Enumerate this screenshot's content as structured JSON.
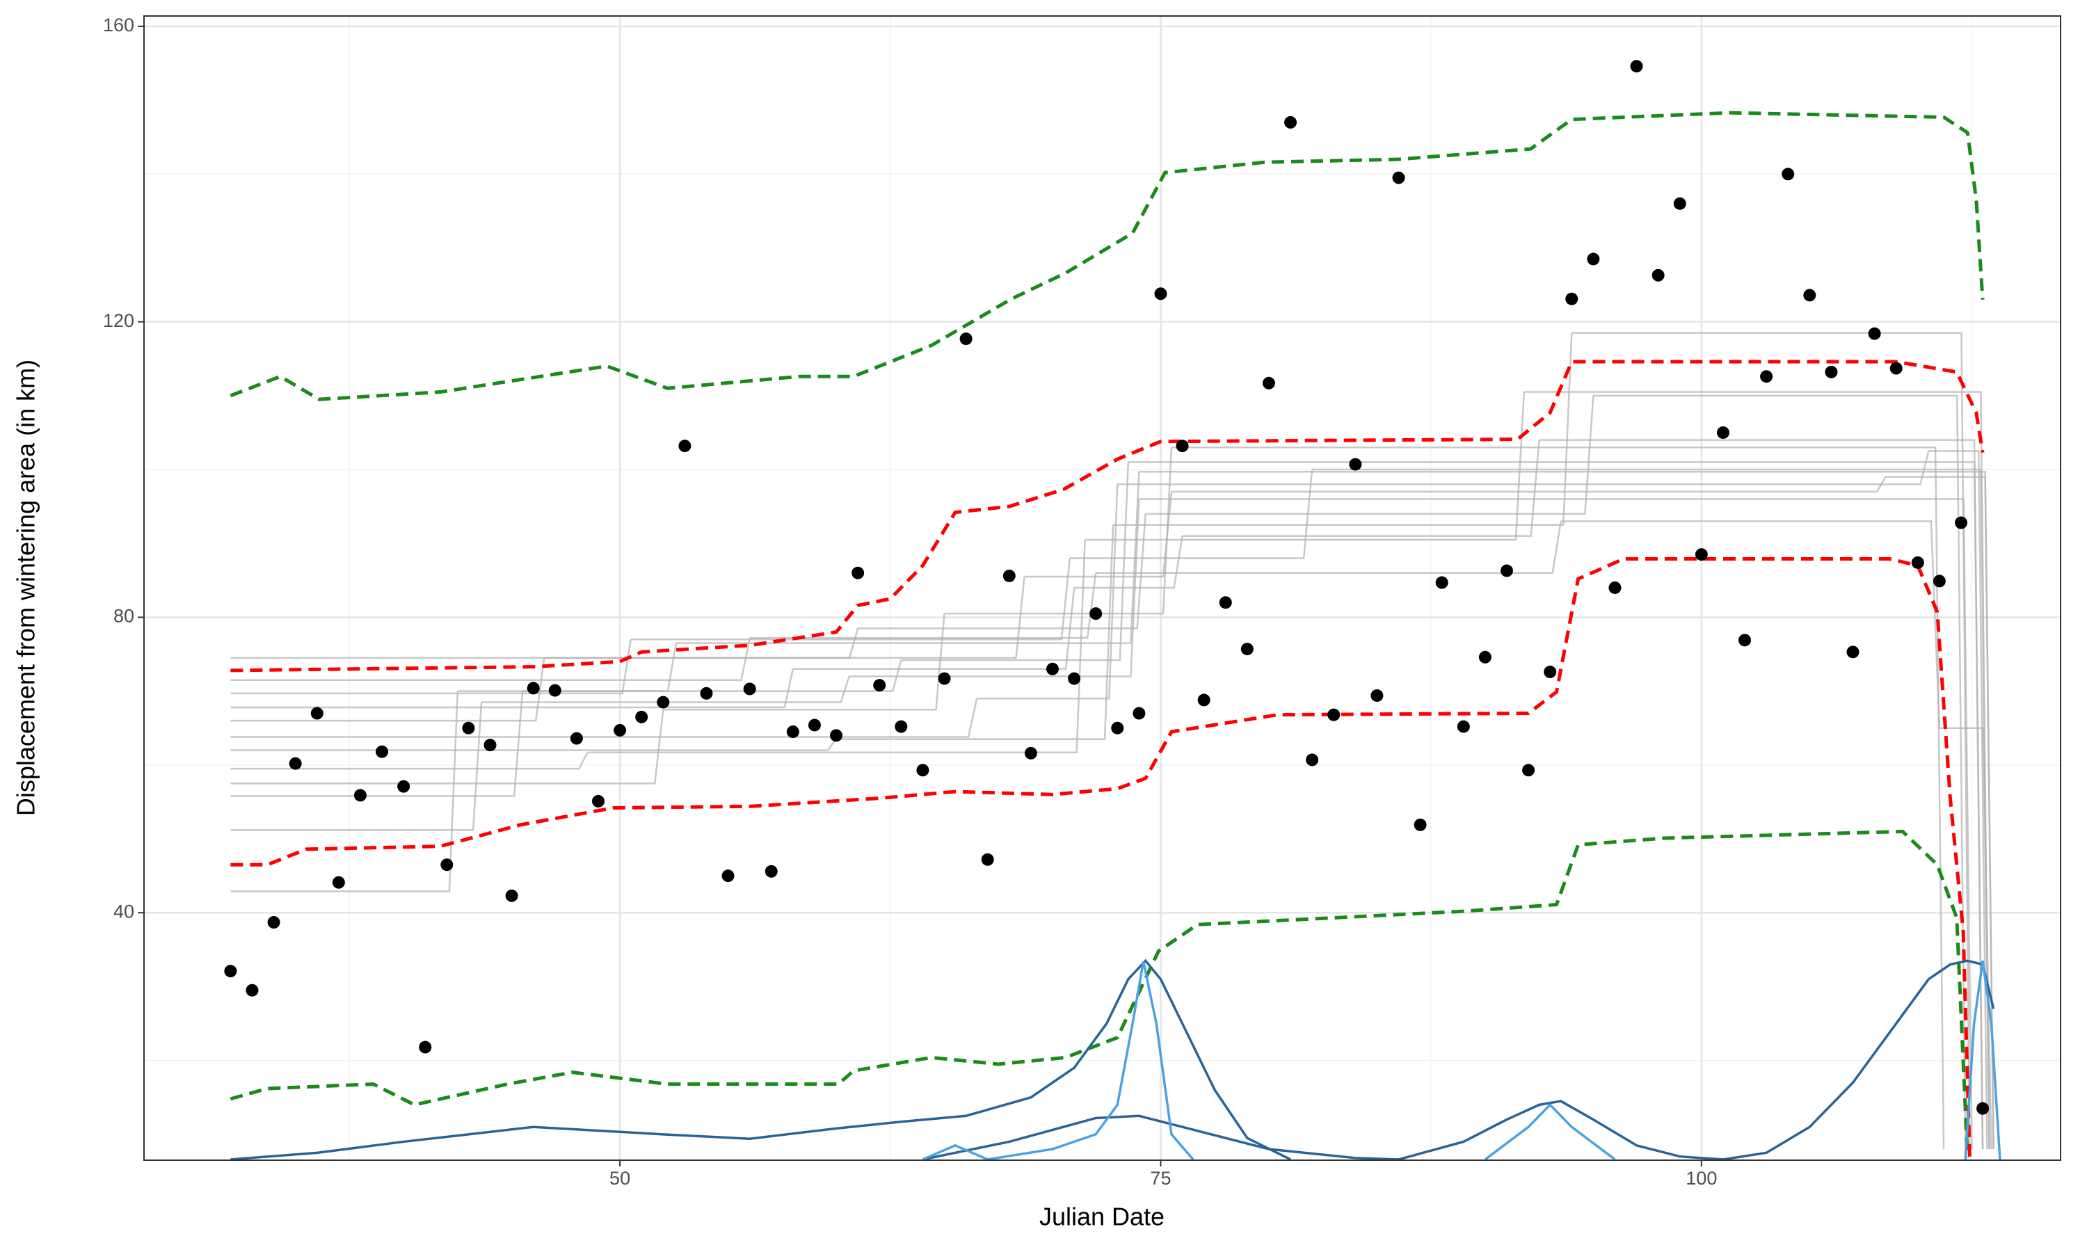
{
  "chart_data": {
    "type": "scatter",
    "x_label": "Julian Date",
    "y_label": "Displacement from wintering area (in km)",
    "xlim": [
      28.0,
      116.6
    ],
    "ylim": [
      6.5,
      161.4
    ],
    "xticks": [
      50,
      75,
      100
    ],
    "yticks": [
      40,
      80,
      120,
      160
    ],
    "x_minor_grid": [
      37.5,
      62.5,
      87.5,
      112.5
    ],
    "y_minor_grid": [
      20,
      60,
      100,
      140
    ],
    "grid": true,
    "color": "#000000",
    "x": [
      32,
      33,
      34,
      35,
      36,
      37,
      38,
      39,
      40,
      41,
      42,
      43,
      44,
      45,
      46,
      47,
      48,
      49,
      50,
      51,
      52,
      53,
      54,
      55,
      56,
      57,
      58,
      59,
      60,
      61,
      62,
      63,
      64,
      65,
      66,
      67,
      68,
      69,
      70,
      71,
      72,
      73,
      74,
      75,
      76,
      77,
      78,
      79,
      80,
      81,
      82,
      83,
      84,
      85,
      86,
      87,
      88,
      89,
      90,
      91,
      92,
      93,
      94,
      95,
      96,
      97,
      98,
      99,
      100,
      101,
      102,
      103,
      104,
      105,
      106,
      107,
      108,
      109,
      110,
      111,
      112,
      113
    ],
    "values": [
      32.1,
      29.5,
      38.7,
      60.2,
      67.0,
      44.1,
      55.9,
      61.8,
      57.1,
      21.8,
      46.5,
      65.0,
      62.7,
      42.3,
      70.4,
      70.1,
      63.6,
      55.1,
      64.7,
      66.5,
      68.5,
      103.2,
      69.7,
      45.0,
      70.3,
      45.6,
      64.5,
      65.4,
      64.0,
      86.0,
      70.8,
      65.2,
      59.3,
      71.7,
      117.7,
      47.2,
      85.6,
      61.6,
      73.0,
      71.7,
      80.5,
      65.0,
      67.0,
      123.8,
      103.2,
      68.8,
      82.0,
      75.7,
      111.7,
      147.0,
      60.7,
      66.8,
      100.7,
      69.4,
      139.5,
      51.9,
      84.7,
      65.2,
      74.6,
      86.3,
      59.3,
      72.6,
      123.1,
      128.5,
      84.0,
      154.6,
      126.3,
      136.0,
      88.5,
      105.0,
      76.9,
      112.6,
      140.0,
      123.6,
      113.2,
      75.3,
      118.4,
      113.7,
      87.4,
      84.9,
      92.8,
      13.5
    ],
    "steps_color": "#b0b0b0",
    "steps": [
      {
        "x": [
          32,
          42.5,
          52.6,
          74,
          113.5
        ],
        "values": [
          42.9,
          70,
          76.5,
          99.7,
          8
        ]
      },
      {
        "x": [
          32,
          43.6,
          60.6,
          74,
          112.5
        ],
        "values": [
          51.2,
          68.5,
          72,
          96,
          8
        ]
      },
      {
        "x": [
          32,
          45.5,
          63,
          73.5,
          113
        ],
        "values": [
          55.8,
          70,
          74.2,
          101,
          8
        ]
      },
      {
        "x": [
          32,
          52,
          65,
          75.5,
          111.2
        ],
        "values": [
          57.5,
          67.5,
          80.5,
          103,
          8
        ]
      },
      {
        "x": [
          32,
          48.5,
          71.5,
          91.8,
          113.3
        ],
        "values": [
          59.5,
          61.7,
          90.5,
          110.5,
          8
        ]
      },
      {
        "x": [
          32,
          60,
          72.8,
          94,
          112.4
        ],
        "values": [
          62,
          63.5,
          92.5,
          118.5,
          8
        ]
      },
      {
        "x": [
          32,
          66.5,
          73,
          110.5,
          113.2
        ],
        "values": [
          63.8,
          69,
          98,
          102.5,
          8
        ]
      },
      {
        "x": [
          32,
          46.5,
          68.7,
          75.5,
          108.5,
          113.5
        ],
        "values": [
          66,
          74.5,
          85.5,
          97,
          99,
          8
        ]
      },
      {
        "x": [
          32,
          58,
          71,
          76,
          92.5,
          113
        ],
        "values": [
          67.8,
          73,
          84,
          91,
          104,
          8
        ]
      },
      {
        "x": [
          32,
          50.5,
          70.8,
          82,
          113.3
        ],
        "values": [
          69.7,
          77,
          88,
          100,
          8
        ]
      },
      {
        "x": [
          32,
          56,
          72,
          93.5,
          111,
          113.4
        ],
        "values": [
          71.5,
          77.2,
          86,
          93,
          65,
          8
        ]
      },
      {
        "x": [
          32,
          61,
          74.3,
          95,
          112.2
        ],
        "values": [
          74.5,
          78.5,
          94,
          110,
          8
        ]
      }
    ],
    "lines": [
      {
        "color": "#1a8a1a",
        "x": [
          32,
          34.3,
          36.1,
          41.7,
          49.4,
          52.2,
          58.3,
          60.8,
          64.4,
          68.1,
          70.6,
          73.7,
          75.2,
          79.8,
          86,
          92.1,
          94,
          101.3,
          111.2,
          112.3,
          112.7,
          113
        ],
        "values": [
          110,
          112.6,
          109.5,
          110.5,
          114,
          111,
          112.6,
          112.6,
          116.8,
          123.1,
          126.6,
          132,
          140.2,
          141.6,
          142,
          143.4,
          147.4,
          148.3,
          147.7,
          145.6,
          136.6,
          123
        ]
      },
      {
        "color": "#1a8a1a",
        "x": [
          32,
          33.7,
          38.6,
          40.5,
          44.8,
          47.8,
          52.2,
          60.1,
          60.8,
          64.4,
          67.5,
          70.6,
          73,
          74.9,
          76.7,
          82.9,
          89,
          93.3,
          94.3,
          98.3,
          109.3,
          110.9,
          111.8,
          112.3
        ],
        "values": [
          14.8,
          16.2,
          16.8,
          14,
          16.8,
          18.4,
          16.8,
          16.8,
          18.6,
          20.4,
          19.5,
          20.4,
          23.1,
          34.8,
          38.4,
          39.3,
          40.2,
          41.1,
          49.2,
          50.1,
          51,
          46.5,
          39.3,
          6.9
        ]
      },
      {
        "color": "#ff0000",
        "x": [
          32,
          46,
          50,
          51,
          56,
          60,
          61,
          62.5,
          64,
          65.5,
          68,
          70.5,
          73,
          75,
          91.5,
          93,
          94,
          109,
          111.8,
          112.7,
          113
        ],
        "values": [
          72.8,
          73.3,
          74,
          75.3,
          76.2,
          78,
          81.6,
          82.5,
          87,
          94.2,
          95,
          97.3,
          101.4,
          103.8,
          104.1,
          107.7,
          114.6,
          114.6,
          113.2,
          107.7,
          102.3
        ]
      },
      {
        "color": "#ff0000",
        "x": [
          32,
          33.7,
          35.5,
          41.7,
          45.4,
          49.7,
          56,
          62,
          65.5,
          70,
          73,
          74.3,
          75.5,
          80.4,
          92,
          93.3,
          94.3,
          96.4,
          108.7,
          110,
          110.9,
          111.5,
          112.1,
          112.4
        ],
        "values": [
          46.5,
          46.5,
          48.6,
          49,
          51.9,
          54.2,
          54.4,
          55.5,
          56.4,
          56,
          56.8,
          58.2,
          64.5,
          66.8,
          67,
          69.9,
          85.2,
          87.9,
          87.9,
          87,
          80.7,
          55.5,
          37.5,
          6.9
        ]
      }
    ],
    "densities": [
      {
        "color": "#2a6496",
        "x": [
          32,
          36,
          40,
          46,
          52,
          56,
          60,
          63,
          66,
          69,
          71,
          72.5,
          73.5,
          74.3,
          75,
          76,
          77.5,
          79,
          81
        ],
        "values": [
          6.6,
          7.5,
          9,
          11,
          10,
          9.4,
          10.8,
          11.7,
          12.5,
          15,
          19,
          25,
          31,
          33.5,
          31,
          25,
          16,
          9.5,
          6.6
        ]
      },
      {
        "color": "#2a6496",
        "x": [
          64,
          68,
          72,
          74,
          76,
          80,
          84,
          86
        ],
        "values": [
          6.6,
          9,
          12.2,
          12.5,
          11,
          8,
          6.8,
          6.6
        ]
      },
      {
        "color": "#2a6496",
        "x": [
          86,
          89,
          91,
          92.5,
          93.5,
          95,
          97,
          99,
          101,
          103,
          105,
          107,
          109,
          110.5,
          111.5,
          112.3,
          113,
          113.5
        ],
        "values": [
          6.6,
          9,
          12,
          14,
          14.5,
          12,
          8.5,
          7,
          6.6,
          7.5,
          11,
          17,
          25,
          31,
          33,
          33.5,
          33,
          27
        ]
      },
      {
        "color": "#4aa3e0",
        "x": [
          64,
          65.5,
          67,
          70,
          72,
          73,
          73.7,
          74.2,
          74.8,
          75.5,
          76.5
        ],
        "values": [
          6.6,
          8.5,
          6.6,
          8,
          10,
          14,
          25,
          33.4,
          25,
          10,
          6.6
        ]
      },
      {
        "color": "#4aa3e0",
        "x": [
          90,
          92,
          93,
          94,
          96
        ],
        "values": [
          6.6,
          11,
          14,
          11,
          6.6
        ]
      },
      {
        "color": "#4aa3e0",
        "x": [
          112.2,
          112.6,
          113,
          113.4,
          113.8
        ],
        "values": [
          6.6,
          25,
          33.5,
          25,
          6.6
        ]
      }
    ]
  }
}
